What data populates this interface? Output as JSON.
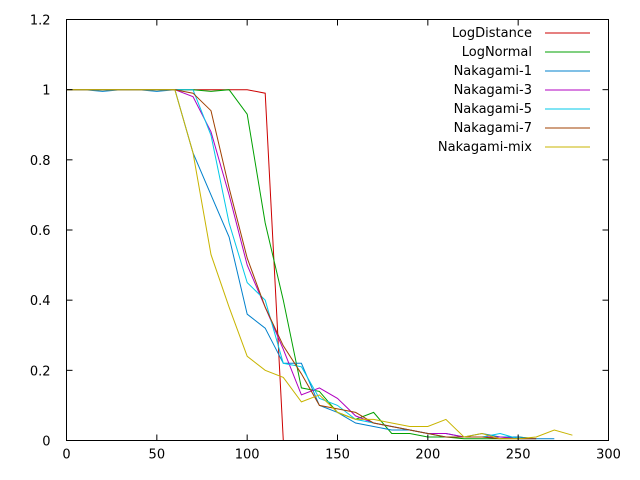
{
  "chart_data": {
    "type": "line",
    "title": "",
    "xlabel": "",
    "ylabel": "",
    "xlim": [
      0,
      300
    ],
    "ylim": [
      0,
      1.2
    ],
    "xticks": [
      0,
      50,
      100,
      150,
      200,
      250,
      300
    ],
    "yticks": [
      0,
      0.2,
      0.4,
      0.6,
      0.8,
      1,
      1.2
    ],
    "xtick_labels": [
      "0",
      "50",
      "100",
      "150",
      "200",
      "250",
      "300"
    ],
    "ytick_labels": [
      "0",
      "0.2",
      "0.4",
      "0.6",
      "0.8",
      "1",
      "1.2"
    ],
    "grid": false,
    "legend_position": "top-right",
    "series": [
      {
        "name": "LogDistance",
        "color": "#cc0000",
        "x": [
          0,
          10,
          20,
          30,
          40,
          50,
          60,
          70,
          80,
          90,
          100,
          110,
          120,
          122
        ],
        "y": [
          1,
          1,
          1,
          1,
          1,
          1,
          1,
          1,
          1,
          1,
          1,
          0.99,
          0.0,
          0.0
        ]
      },
      {
        "name": "LogNormal",
        "color": "#00a000",
        "x": [
          0,
          10,
          20,
          30,
          40,
          50,
          60,
          70,
          80,
          90,
          100,
          110,
          120,
          130,
          140,
          150,
          160,
          170,
          180,
          190,
          200,
          210,
          220,
          230,
          240,
          250,
          260
        ],
        "y": [
          1,
          1,
          1,
          1,
          1,
          1,
          1,
          1,
          0.995,
          1,
          0.93,
          0.62,
          0.4,
          0.15,
          0.14,
          0.08,
          0.06,
          0.08,
          0.02,
          0.02,
          0.01,
          0.01,
          0.005,
          0.005,
          0.005,
          0.01,
          0.005
        ]
      },
      {
        "name": "Nakagami-1",
        "color": "#0080cc",
        "x": [
          0,
          10,
          20,
          30,
          40,
          50,
          60,
          70,
          80,
          90,
          100,
          110,
          120,
          130,
          140,
          150,
          160,
          170,
          180,
          190,
          200,
          210,
          220,
          230,
          240,
          250,
          260,
          270
        ],
        "y": [
          1,
          1,
          0.995,
          1,
          1,
          0.995,
          1,
          0.82,
          0.7,
          0.58,
          0.36,
          0.32,
          0.22,
          0.22,
          0.1,
          0.08,
          0.05,
          0.04,
          0.03,
          0.03,
          0.02,
          0.02,
          0.01,
          0.02,
          0.01,
          0.01,
          0.005,
          0.005
        ]
      },
      {
        "name": "Nakagami-3",
        "color": "#b000c0",
        "x": [
          0,
          10,
          20,
          30,
          40,
          50,
          60,
          70,
          80,
          90,
          100,
          110,
          120,
          130,
          140,
          150,
          160,
          170,
          180,
          190,
          200,
          210,
          220,
          230,
          240,
          250,
          260
        ],
        "y": [
          1,
          1,
          1,
          1,
          1,
          1,
          1,
          0.98,
          0.88,
          0.7,
          0.5,
          0.38,
          0.26,
          0.13,
          0.15,
          0.12,
          0.07,
          0.05,
          0.04,
          0.03,
          0.02,
          0.02,
          0.01,
          0.01,
          0.01,
          0.005,
          0.005
        ]
      },
      {
        "name": "Nakagami-5",
        "color": "#00c8e8",
        "x": [
          0,
          10,
          20,
          30,
          40,
          50,
          60,
          70,
          80,
          90,
          100,
          110,
          120,
          130,
          140,
          150,
          160,
          170,
          180,
          190,
          200,
          210,
          220,
          230,
          240,
          250,
          260
        ],
        "y": [
          1,
          1,
          1,
          1,
          1,
          1,
          1,
          1,
          0.87,
          0.62,
          0.45,
          0.4,
          0.22,
          0.21,
          0.12,
          0.1,
          0.06,
          0.05,
          0.04,
          0.03,
          0.02,
          0.01,
          0.01,
          0.01,
          0.02,
          0.005,
          0.005
        ]
      },
      {
        "name": "Nakagami-7",
        "color": "#a04000",
        "x": [
          0,
          10,
          20,
          30,
          40,
          50,
          60,
          70,
          80,
          90,
          100,
          110,
          120,
          130,
          140,
          150,
          160,
          170,
          180,
          190,
          200,
          210,
          220,
          230,
          240,
          250,
          260
        ],
        "y": [
          1,
          1,
          1,
          1,
          1,
          1,
          1,
          0.99,
          0.94,
          0.72,
          0.52,
          0.38,
          0.27,
          0.19,
          0.1,
          0.09,
          0.08,
          0.05,
          0.04,
          0.03,
          0.02,
          0.01,
          0.01,
          0.01,
          0.005,
          0.005,
          0.005
        ]
      },
      {
        "name": "Nakagami-mix",
        "color": "#c8b400",
        "x": [
          0,
          10,
          20,
          30,
          40,
          50,
          60,
          70,
          80,
          90,
          100,
          110,
          120,
          130,
          140,
          150,
          160,
          170,
          180,
          190,
          200,
          210,
          220,
          230,
          240,
          250,
          260,
          270,
          280
        ],
        "y": [
          1,
          1,
          1,
          1,
          1,
          1,
          1,
          0.82,
          0.53,
          0.38,
          0.24,
          0.2,
          0.18,
          0.11,
          0.13,
          0.08,
          0.06,
          0.06,
          0.05,
          0.04,
          0.04,
          0.06,
          0.01,
          0.02,
          0.005,
          0.005,
          0.01,
          0.03,
          0.015
        ]
      }
    ]
  }
}
